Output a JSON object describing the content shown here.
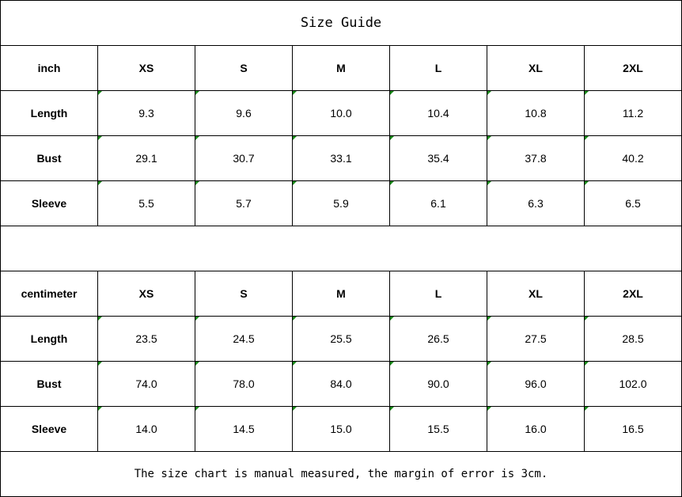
{
  "title": "Size Guide",
  "inch_table": {
    "unit": "inch",
    "sizes": [
      "XS",
      "S",
      "M",
      "L",
      "XL",
      "2XL"
    ],
    "rows": [
      {
        "label": "Length",
        "values": [
          "9.3",
          "9.6",
          "10.0",
          "10.4",
          "10.8",
          "11.2"
        ]
      },
      {
        "label": "Bust",
        "values": [
          "29.1",
          "30.7",
          "33.1",
          "35.4",
          "37.8",
          "40.2"
        ]
      },
      {
        "label": "Sleeve",
        "values": [
          "5.5",
          "5.7",
          "5.9",
          "6.1",
          "6.3",
          "6.5"
        ]
      }
    ]
  },
  "cm_table": {
    "unit": "centimeter",
    "sizes": [
      "XS",
      "S",
      "M",
      "L",
      "XL",
      "2XL"
    ],
    "rows": [
      {
        "label": "Length",
        "values": [
          "23.5",
          "24.5",
          "25.5",
          "26.5",
          "27.5",
          "28.5"
        ]
      },
      {
        "label": "Bust",
        "values": [
          "74.0",
          "78.0",
          "84.0",
          "90.0",
          "96.0",
          "102.0"
        ]
      },
      {
        "label": "Sleeve",
        "values": [
          "14.0",
          "14.5",
          "15.0",
          "15.5",
          "16.0",
          "16.5"
        ]
      }
    ]
  },
  "note": "The size chart is manual measured, the margin of error is 3cm.",
  "colors": {
    "error_marker": "#1a8a1a",
    "border": "#000000"
  }
}
